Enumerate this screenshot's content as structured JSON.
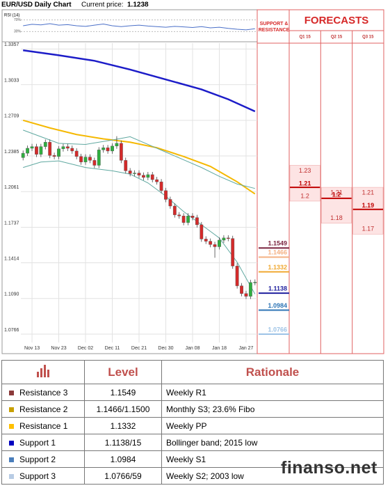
{
  "header": {
    "title": "EUR/USD Daily Chart",
    "price_label": "Current price:",
    "current_price": 1.1238
  },
  "chart_data": {
    "type": "candlestick",
    "categories": [
      null,
      null,
      "Nov 13",
      null,
      null,
      null,
      null,
      null,
      "Nov 23",
      null,
      null,
      null,
      null,
      null,
      "Dec 02",
      null,
      null,
      null,
      null,
      null,
      "Dec 11",
      null,
      null,
      null,
      null,
      null,
      "Dec 21",
      null,
      null,
      null,
      null,
      null,
      "Dec 30",
      null,
      null,
      null,
      null,
      null,
      "Jan 08",
      null,
      null,
      null,
      null,
      null,
      "Jan 18",
      null,
      null,
      null,
      null,
      null,
      "Jan 27",
      null,
      null
    ],
    "open": [
      1.237,
      1.241,
      1.2455,
      1.247,
      1.24,
      1.247,
      1.251,
      1.239,
      1.238,
      1.245,
      1.247,
      1.2455,
      1.243,
      1.238,
      1.233,
      1.2375,
      1.2345,
      1.23,
      1.244,
      1.246,
      1.243,
      1.2475,
      1.25,
      1.2345,
      1.225,
      1.2225,
      1.223,
      1.221,
      1.219,
      1.2215,
      1.217,
      1.215,
      1.207,
      1.199,
      1.193,
      1.185,
      1.184,
      1.178,
      1.184,
      1.1825,
      1.176,
      1.163,
      1.161,
      1.158,
      1.156,
      1.162,
      1.164,
      1.1635,
      1.1385,
      1.1205,
      1.1135,
      1.111,
      1.1235
    ],
    "high": [
      1.2435,
      1.248,
      1.2495,
      1.2495,
      1.2495,
      1.2535,
      1.2535,
      1.2415,
      1.2475,
      1.2495,
      1.2495,
      1.248,
      1.2455,
      1.2405,
      1.24,
      1.24,
      1.237,
      1.2465,
      1.2485,
      1.2485,
      1.25,
      1.2565,
      1.2525,
      1.237,
      1.2275,
      1.2255,
      1.2255,
      1.2235,
      1.224,
      1.224,
      1.2195,
      1.2175,
      1.2095,
      1.2015,
      1.1955,
      1.1875,
      1.1865,
      1.1865,
      1.1865,
      1.185,
      1.1785,
      1.1655,
      1.1635,
      1.1605,
      1.1645,
      1.1665,
      1.1665,
      1.166,
      1.141,
      1.123,
      1.116,
      1.126,
      1.1263
    ],
    "low": [
      1.2345,
      1.2385,
      1.243,
      1.2375,
      1.2375,
      1.2445,
      1.2365,
      1.2355,
      1.2355,
      1.2425,
      1.243,
      1.2405,
      1.2355,
      1.2305,
      1.2305,
      1.232,
      1.2275,
      1.2275,
      1.2415,
      1.2405,
      1.2405,
      1.245,
      1.232,
      1.2225,
      1.22,
      1.22,
      1.2185,
      1.2165,
      1.2165,
      1.2145,
      1.2125,
      1.2045,
      1.1965,
      1.1905,
      1.1825,
      1.1815,
      1.1755,
      1.1755,
      1.18,
      1.1735,
      1.1605,
      1.1585,
      1.1555,
      1.146,
      1.1535,
      1.1595,
      1.161,
      1.136,
      1.118,
      1.111,
      1.1085,
      1.1085,
      1.121
    ],
    "close": [
      1.241,
      1.2455,
      1.247,
      1.24,
      1.247,
      1.251,
      1.239,
      1.238,
      1.245,
      1.247,
      1.2455,
      1.243,
      1.238,
      1.233,
      1.2375,
      1.2345,
      1.23,
      1.244,
      1.246,
      1.243,
      1.2475,
      1.25,
      1.2345,
      1.225,
      1.2225,
      1.223,
      1.221,
      1.219,
      1.2215,
      1.217,
      1.215,
      1.207,
      1.199,
      1.193,
      1.185,
      1.184,
      1.178,
      1.184,
      1.1825,
      1.176,
      1.163,
      1.161,
      1.158,
      1.156,
      1.162,
      1.164,
      1.1635,
      1.1385,
      1.1205,
      1.1135,
      1.111,
      1.1235,
      1.1238
    ],
    "up_color": "#2fae3f",
    "down_color": "#d42a2a",
    "ylim": [
      1.069,
      1.341
    ],
    "yticks": [
      1.3357,
      1.3033,
      1.2709,
      1.2385,
      1.2061,
      1.1737,
      1.1414,
      {
        "value": 1.109,
        "label": "1.1090"
      },
      1.0766
    ],
    "grid": true,
    "overlays": [
      {
        "color": "#1c1cc8",
        "width": 2.5,
        "x": [
          0,
          8,
          16,
          24,
          32,
          40,
          46,
          52
        ],
        "values": [
          1.3345,
          1.33,
          1.325,
          1.317,
          1.308,
          1.299,
          1.29,
          1.279
        ]
      },
      {
        "color": "#f5b800",
        "width": 2,
        "x": [
          0,
          6,
          12,
          18,
          24,
          30,
          36,
          42,
          48,
          52
        ],
        "values": [
          1.2709,
          1.264,
          1.258,
          1.254,
          1.251,
          1.246,
          1.238,
          1.229,
          1.215,
          1.204
        ]
      },
      {
        "color": "#5fa8a0",
        "width": 1,
        "x": [
          0,
          4,
          8,
          14,
          20,
          24,
          28,
          32,
          36,
          40,
          44,
          48,
          52
        ],
        "values": [
          1.262,
          1.256,
          1.25,
          1.249,
          1.253,
          1.256,
          1.249,
          1.242,
          1.235,
          1.228,
          1.22,
          1.213,
          1.209
        ]
      },
      {
        "color": "#5fa8a0",
        "width": 1,
        "x": [
          0,
          4,
          8,
          14,
          20,
          24,
          28,
          32,
          36,
          40,
          44,
          48,
          52
        ],
        "values": [
          1.228,
          1.233,
          1.234,
          1.228,
          1.225,
          1.222,
          1.214,
          1.202,
          1.188,
          1.176,
          1.164,
          1.142,
          1.113
        ]
      }
    ],
    "rsi": {
      "label": "RSI (14)",
      "ylim": [
        0,
        100
      ],
      "yticks": [
        {
          "value": 70,
          "label": "70%"
        },
        {
          "value": 30,
          "label": "30%"
        }
      ],
      "color": "#4a6fc8",
      "x": [
        0,
        2,
        4,
        6,
        8,
        10,
        12,
        14,
        16,
        18,
        20,
        22,
        24,
        26,
        28,
        30,
        32,
        34,
        36,
        38,
        40,
        42,
        44,
        46,
        48,
        50,
        52
      ],
      "values": [
        50,
        55,
        53,
        57,
        52,
        54,
        50,
        48,
        52,
        56,
        50,
        47,
        50,
        52,
        49,
        47,
        45,
        48,
        46,
        44,
        47,
        43,
        45,
        41,
        38,
        36,
        40
      ]
    },
    "sr_title": "SUPPORT & RESISTANCE",
    "forecasts_title": "FORECASTS",
    "levels": [
      {
        "value": 1.1549,
        "color": "#7b2540"
      },
      {
        "value": 1.1466,
        "color": "#f4b183"
      },
      {
        "value": 1.1332,
        "color": "#f0a830"
      },
      {
        "value": 1.1138,
        "color": "#1f1f9e"
      },
      {
        "value": 1.0984,
        "color": "#2e75b6"
      },
      {
        "value": 1.0766,
        "color": "#9dc3e6"
      }
    ],
    "forecasts": [
      {
        "label": "Q1 15",
        "high": 1.23,
        "mid": 1.21,
        "low": 1.2
      },
      {
        "label": "Q2 15",
        "high": 1.21,
        "mid": 1.2,
        "low": 1.18
      },
      {
        "label": "Q3 15",
        "high": 1.21,
        "mid": 1.19,
        "low": 1.17
      }
    ]
  },
  "table": {
    "columns": [
      "Level",
      "Rationale"
    ],
    "rows": [
      {
        "label": "Resistance 3",
        "color": "#8b3a3a",
        "level": "1.1549",
        "rationale": "Weekly R1"
      },
      {
        "label": "Resistance 2",
        "color": "#c8a000",
        "level": "1.1466/1.1500",
        "rationale": "Monthly S3; 23.6% Fibo"
      },
      {
        "label": "Resistance 1",
        "color": "#ffc000",
        "level": "1.1332",
        "rationale": "Weekly PP"
      },
      {
        "label": "Support 1",
        "color": "#0000c0",
        "level": "1.1138/15",
        "rationale": "Bollinger band; 2015 low"
      },
      {
        "label": "Support 2",
        "color": "#4a7ebb",
        "level": "1.0984",
        "rationale": "Weekly S1"
      },
      {
        "label": "Support 3",
        "color": "#b8cce4",
        "level": "1.0766/59",
        "rationale": "Weekly S2; 2003 low"
      }
    ]
  },
  "watermark": "finanso.net"
}
